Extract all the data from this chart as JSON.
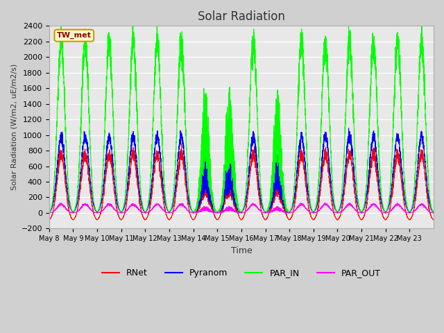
{
  "title": "Solar Radiation",
  "ylabel": "Solar Radiation (W/m2, uE/m2/s)",
  "xlabel": "Time",
  "ylim": [
    -200,
    2400
  ],
  "yticks": [
    -200,
    0,
    200,
    400,
    600,
    800,
    1000,
    1200,
    1400,
    1600,
    1800,
    2000,
    2200,
    2400
  ],
  "xtick_labels": [
    "May 8",
    "May 9",
    "May 10",
    "May 11",
    "May 12",
    "May 13",
    "May 14",
    "May 15",
    "May 16",
    "May 17",
    "May 18",
    "May 19",
    "May 20",
    "May 21",
    "May 22",
    "May 23"
  ],
  "station_label": "TW_met",
  "legend_entries": [
    "RNet",
    "Pyranom",
    "PAR_IN",
    "PAR_OUT"
  ],
  "line_colors": [
    "#ff0000",
    "#0000ff",
    "#00ff00",
    "#ff00ff"
  ],
  "n_days": 16,
  "points_per_day": 288,
  "rnet_peak": 750,
  "pyranom_peak": 980,
  "par_in_peak": 2200,
  "par_out_peak": 110,
  "rnet_night": -100,
  "pyranom_night": 0,
  "par_in_night": 0,
  "par_out_night": 0
}
